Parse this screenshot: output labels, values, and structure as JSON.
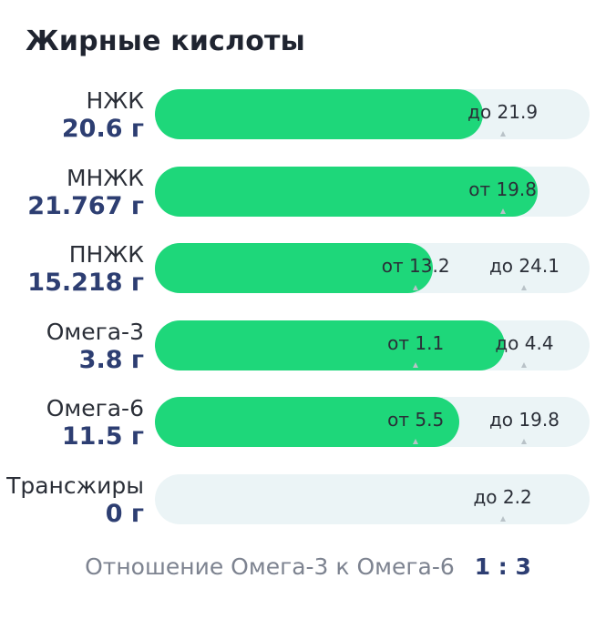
{
  "title": "Жирные кислоты",
  "rows": [
    {
      "name": "НЖК",
      "amount": "20.6 г",
      "fill": 0.755,
      "marks": [
        {
          "text": "до 21.9",
          "pos": 0.8
        }
      ]
    },
    {
      "name": "МНЖК",
      "amount": "21.767 г",
      "fill": 0.88,
      "marks": [
        {
          "text": "от 19.8",
          "pos": 0.8
        }
      ]
    },
    {
      "name": "ПНЖК",
      "amount": "15.218 г",
      "fill": 0.64,
      "marks": [
        {
          "text": "от 13.2",
          "pos": 0.6
        },
        {
          "text": "до 24.1",
          "pos": 0.85
        }
      ]
    },
    {
      "name": "Омега-3",
      "amount": "3.8 г",
      "fill": 0.805,
      "marks": [
        {
          "text": "от 1.1",
          "pos": 0.6
        },
        {
          "text": "до 4.4",
          "pos": 0.85
        }
      ]
    },
    {
      "name": "Омега-6",
      "amount": "11.5 г",
      "fill": 0.7,
      "marks": [
        {
          "text": "от 5.5",
          "pos": 0.6
        },
        {
          "text": "до 19.8",
          "pos": 0.85
        }
      ]
    },
    {
      "name": "Трансжиры",
      "amount": "0 г",
      "fill": 0,
      "marks": [
        {
          "text": "до 2.2",
          "pos": 0.8
        }
      ]
    }
  ],
  "ratio": {
    "label": "Отношение Омега-3 к Омега-6",
    "value": "1 : 3"
  }
}
